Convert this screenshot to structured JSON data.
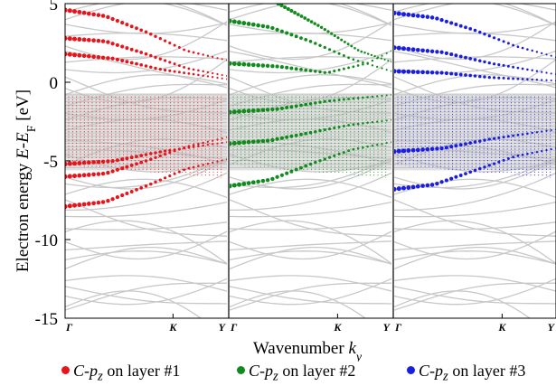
{
  "chart_data": {
    "type": "scatter",
    "ylabel_main": "Electron energy ",
    "ylabel_math": "E-E",
    "ylabel_sub": "F",
    "ylabel_unit": " [eV]",
    "xlabel_main": "Wavenumber ",
    "xlabel_math": "k",
    "xlabel_sub": "y",
    "ylim": [
      -15,
      5
    ],
    "yticks": [
      "5",
      "0",
      "-5",
      "-10",
      "-15"
    ],
    "ytick_values": [
      5,
      0,
      -5,
      -10,
      -15
    ],
    "x_range": [
      0,
      1
    ],
    "k_points": [
      {
        "label": "Γ",
        "x": 0.0
      },
      {
        "label": "K",
        "x": 0.667
      },
      {
        "label": "Y",
        "x": 1.0
      }
    ],
    "background_color": "#c8c8c8",
    "series": [
      {
        "name_italic": "C-p",
        "name_sub": "z",
        "name_rest": " on layer #1",
        "color": "#e8141b",
        "bands": [
          [
            [
              0,
              2.8
            ],
            [
              0.25,
              2.6
            ],
            [
              0.5,
              1.8
            ],
            [
              0.75,
              0.9
            ],
            [
              1.0,
              0.4
            ]
          ],
          [
            [
              0,
              4.6
            ],
            [
              0.25,
              4.2
            ],
            [
              0.5,
              3.2
            ],
            [
              0.75,
              2.0
            ],
            [
              1.0,
              1.4
            ]
          ],
          [
            [
              0,
              1.8
            ],
            [
              0.3,
              1.5
            ],
            [
              0.6,
              0.8
            ],
            [
              1.0,
              0.2
            ]
          ],
          [
            [
              0,
              -6.0
            ],
            [
              0.25,
              -5.8
            ],
            [
              0.5,
              -5.0
            ],
            [
              0.75,
              -4.1
            ],
            [
              1.0,
              -3.5
            ]
          ],
          [
            [
              0,
              -7.9
            ],
            [
              0.25,
              -7.6
            ],
            [
              0.5,
              -6.6
            ],
            [
              0.75,
              -5.5
            ],
            [
              1.0,
              -4.9
            ]
          ],
          [
            [
              0,
              -5.2
            ],
            [
              0.3,
              -5.0
            ],
            [
              0.6,
              -4.4
            ],
            [
              1.0,
              -3.8
            ]
          ]
        ]
      },
      {
        "name_italic": "C-p",
        "name_sub": "z",
        "name_rest": " on layer #2",
        "color": "#118b1d",
        "bands": [
          [
            [
              0,
              3.9
            ],
            [
              0.25,
              3.5
            ],
            [
              0.5,
              2.6
            ],
            [
              0.75,
              1.5
            ],
            [
              1.0,
              0.7
            ]
          ],
          [
            [
              0,
              1.2
            ],
            [
              0.3,
              1.0
            ],
            [
              0.6,
              0.6
            ],
            [
              0.85,
              1.2
            ],
            [
              1.0,
              2.0
            ]
          ],
          [
            [
              0.3,
              5.0
            ],
            [
              0.55,
              3.6
            ],
            [
              0.8,
              2.0
            ],
            [
              1.0,
              1.3
            ]
          ],
          [
            [
              0,
              -3.9
            ],
            [
              0.25,
              -3.7
            ],
            [
              0.5,
              -3.2
            ],
            [
              0.75,
              -2.7
            ],
            [
              1.0,
              -2.4
            ]
          ],
          [
            [
              0,
              -6.6
            ],
            [
              0.25,
              -6.2
            ],
            [
              0.5,
              -5.2
            ],
            [
              0.75,
              -4.3
            ],
            [
              1.0,
              -3.8
            ]
          ],
          [
            [
              0,
              -1.9
            ],
            [
              0.3,
              -1.7
            ],
            [
              0.6,
              -1.2
            ],
            [
              1.0,
              -0.8
            ]
          ]
        ]
      },
      {
        "name_italic": "C-p",
        "name_sub": "z",
        "name_rest": " on layer #3",
        "color": "#1a1ee0",
        "bands": [
          [
            [
              0,
              4.4
            ],
            [
              0.25,
              4.1
            ],
            [
              0.5,
              3.3
            ],
            [
              0.75,
              2.3
            ],
            [
              1.0,
              1.6
            ]
          ],
          [
            [
              0,
              2.2
            ],
            [
              0.3,
              1.9
            ],
            [
              0.6,
              1.2
            ],
            [
              1.0,
              0.5
            ]
          ],
          [
            [
              0,
              0.7
            ],
            [
              0.3,
              0.6
            ],
            [
              0.6,
              0.3
            ],
            [
              1.0,
              0.1
            ]
          ],
          [
            [
              0,
              -6.8
            ],
            [
              0.25,
              -6.5
            ],
            [
              0.5,
              -5.6
            ],
            [
              0.75,
              -4.7
            ],
            [
              1.0,
              -4.2
            ]
          ],
          [
            [
              0,
              -4.4
            ],
            [
              0.3,
              -4.2
            ],
            [
              0.6,
              -3.6
            ],
            [
              1.0,
              -3.0
            ]
          ]
        ]
      }
    ]
  }
}
